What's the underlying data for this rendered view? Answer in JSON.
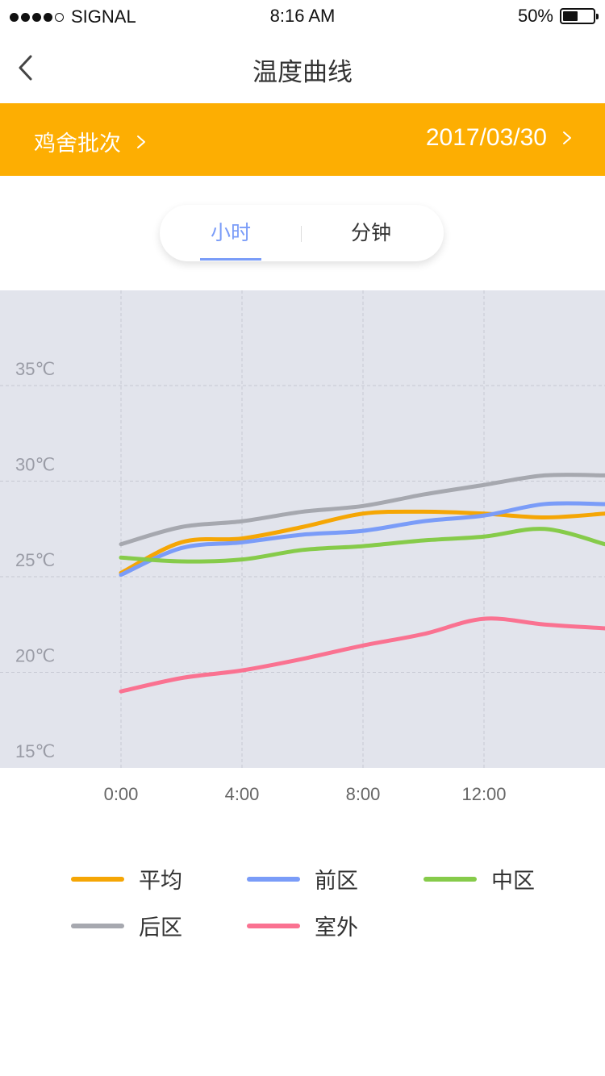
{
  "status_bar": {
    "carrier": "SIGNAL",
    "time": "8:16 AM",
    "battery_percent": "50%",
    "battery_level": 0.5,
    "signal_bars": 4
  },
  "nav": {
    "title": "温度曲线",
    "back_icon": "chevron-left-icon"
  },
  "filter": {
    "batch_label": "鸡舍批次",
    "date_value": "2017/03/30"
  },
  "segment": {
    "tabs": [
      "小时",
      "分钟"
    ],
    "active_index": 0
  },
  "colors": {
    "accent": "#fdae02",
    "active_tab": "#7a9cf8",
    "chart_bg": "#e2e4ec"
  },
  "chart_data": {
    "type": "line",
    "x": [
      "0:00",
      "2:00",
      "4:00",
      "6:00",
      "8:00",
      "10:00",
      "12:00",
      "14:00",
      "16:00"
    ],
    "x_tick_labels": [
      "0:00",
      "4:00",
      "8:00",
      "12:00"
    ],
    "y_tick_labels": [
      "35℃",
      "30℃",
      "25℃",
      "20℃",
      "15℃"
    ],
    "y_ticks": [
      35,
      30,
      25,
      20,
      15
    ],
    "ylim": [
      15,
      37.5
    ],
    "grid": true,
    "legend_position": "bottom",
    "series": [
      {
        "name": "平均",
        "color": "#f5a605",
        "values": [
          25.2,
          26.8,
          27.0,
          27.6,
          28.3,
          28.4,
          28.3,
          28.1,
          28.3
        ]
      },
      {
        "name": "前区",
        "color": "#7a9cf8",
        "values": [
          25.1,
          26.5,
          26.8,
          27.2,
          27.4,
          27.9,
          28.2,
          28.8,
          28.8
        ]
      },
      {
        "name": "中区",
        "color": "#86cb4a",
        "values": [
          26.0,
          25.8,
          25.9,
          26.4,
          26.6,
          26.9,
          27.1,
          27.5,
          26.7
        ]
      },
      {
        "name": "后区",
        "color": "#a6a8af",
        "values": [
          26.7,
          27.6,
          27.9,
          28.4,
          28.7,
          29.3,
          29.8,
          30.3,
          30.3
        ]
      },
      {
        "name": "室外",
        "color": "#fa7291",
        "values": [
          19.0,
          19.7,
          20.1,
          20.7,
          21.4,
          22.0,
          22.8,
          22.5,
          22.3
        ]
      }
    ]
  }
}
